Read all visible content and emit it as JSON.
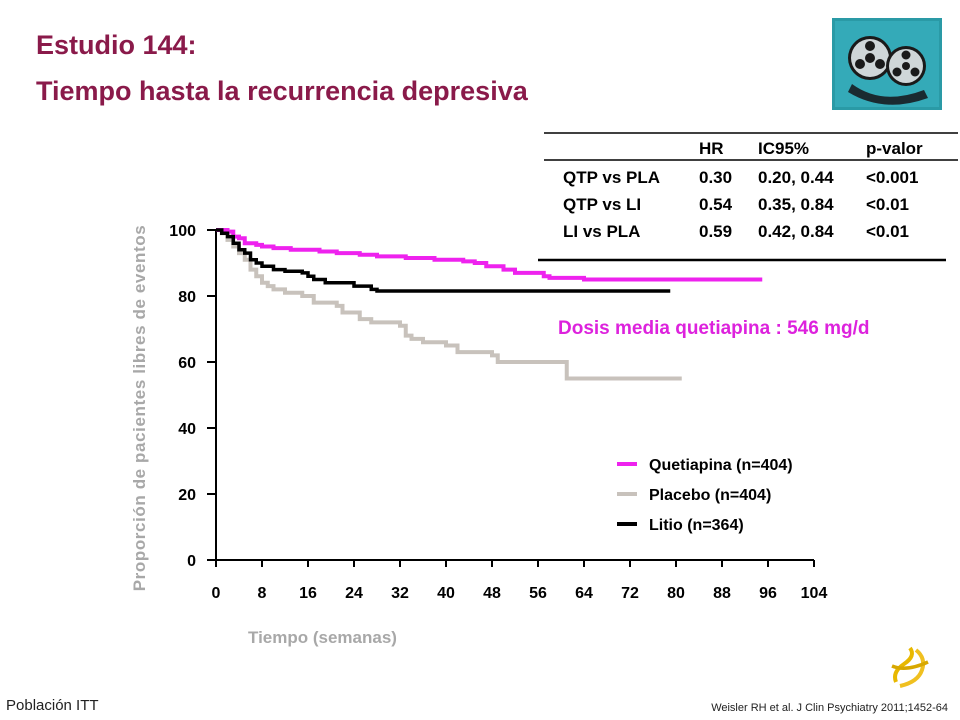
{
  "header": {
    "title_line1": "Estudio 144:",
    "title_line2": "Tiempo hasta la recurrencia depresiva"
  },
  "stats_table": {
    "columns": [
      "",
      "HR",
      "IC95%",
      "p-valor"
    ],
    "rows": [
      [
        "QTP vs PLA",
        "0.30",
        "0.20, 0.44",
        "<0.001"
      ],
      [
        "QTP vs LI",
        "0.54",
        "0.35, 0.84",
        "<0.01"
      ],
      [
        "LI vs PLA",
        "0.59",
        "0.42, 0.84",
        "<0.01"
      ]
    ]
  },
  "annotation": "Dosis media quetiapina : 546 mg/d",
  "footer": {
    "population": "Población ITT",
    "citation": "Weisler RH  et al. J Clin Psychiatry 2011;1452-64"
  },
  "colors": {
    "title": "#8a1a4a",
    "quetiapina": "#ee22ee",
    "placebo": "#c8c2bc",
    "litio": "#000000",
    "annotation": "#dd22dd",
    "axis_label": "#a8a8a8"
  },
  "icons": [
    "film-reels-icon",
    "brand-logo-icon"
  ],
  "chart_data": {
    "type": "line",
    "step": true,
    "xlabel": "Tiempo (semanas)",
    "ylabel": "Proporción de pacientes libres de eventos",
    "xlim": [
      0,
      104
    ],
    "ylim": [
      0,
      100
    ],
    "xticks": [
      0,
      8,
      16,
      24,
      32,
      40,
      48,
      56,
      64,
      72,
      80,
      88,
      96,
      104
    ],
    "yticks": [
      0,
      20,
      40,
      60,
      80,
      100
    ],
    "legend_position": "bottom-right",
    "series": [
      {
        "name": "Quetiapina (n=404)",
        "color": "#ee22ee",
        "points": [
          [
            0,
            100
          ],
          [
            2,
            99.5
          ],
          [
            3,
            98
          ],
          [
            4,
            97.5
          ],
          [
            5,
            96
          ],
          [
            7,
            95.5
          ],
          [
            8,
            95
          ],
          [
            10,
            94.5
          ],
          [
            13,
            94
          ],
          [
            18,
            93.5
          ],
          [
            21,
            93
          ],
          [
            25,
            92.5
          ],
          [
            28,
            92
          ],
          [
            33,
            91.5
          ],
          [
            38,
            91
          ],
          [
            43,
            90.5
          ],
          [
            45,
            90
          ],
          [
            47,
            89
          ],
          [
            50,
            88
          ],
          [
            52,
            87
          ],
          [
            57,
            86
          ],
          [
            58,
            85.5
          ],
          [
            64,
            85
          ],
          [
            72,
            85
          ],
          [
            80,
            85
          ],
          [
            88,
            85
          ],
          [
            95,
            85
          ]
        ]
      },
      {
        "name": "Placebo (n=404)",
        "color": "#c8c2bc",
        "points": [
          [
            0,
            100
          ],
          [
            1,
            99
          ],
          [
            2,
            97
          ],
          [
            3,
            95
          ],
          [
            4,
            93
          ],
          [
            5,
            91
          ],
          [
            6,
            88
          ],
          [
            7,
            86
          ],
          [
            8,
            84
          ],
          [
            9,
            83
          ],
          [
            10,
            82
          ],
          [
            12,
            81
          ],
          [
            15,
            80
          ],
          [
            17,
            78
          ],
          [
            21,
            77
          ],
          [
            22,
            75
          ],
          [
            25,
            73
          ],
          [
            27,
            72
          ],
          [
            32,
            71
          ],
          [
            33,
            68
          ],
          [
            34,
            67
          ],
          [
            36,
            66
          ],
          [
            40,
            65
          ],
          [
            42,
            63
          ],
          [
            48,
            62
          ],
          [
            49,
            60
          ],
          [
            54,
            60
          ],
          [
            60,
            60
          ],
          [
            61,
            55
          ],
          [
            70,
            55
          ],
          [
            81,
            55
          ]
        ]
      },
      {
        "name": "Litio (n=364)",
        "color": "#000000",
        "points": [
          [
            0,
            100
          ],
          [
            1,
            99
          ],
          [
            2,
            98
          ],
          [
            3,
            96
          ],
          [
            4,
            94
          ],
          [
            5,
            93
          ],
          [
            6,
            91
          ],
          [
            7,
            90
          ],
          [
            8,
            89
          ],
          [
            10,
            88
          ],
          [
            12,
            87.5
          ],
          [
            15,
            87
          ],
          [
            16,
            86
          ],
          [
            17,
            85
          ],
          [
            19,
            84
          ],
          [
            24,
            83
          ],
          [
            27,
            82
          ],
          [
            28,
            81.5
          ],
          [
            36,
            81.5
          ],
          [
            50,
            81.5
          ],
          [
            65,
            81.5
          ],
          [
            79,
            81.5
          ]
        ]
      }
    ]
  }
}
